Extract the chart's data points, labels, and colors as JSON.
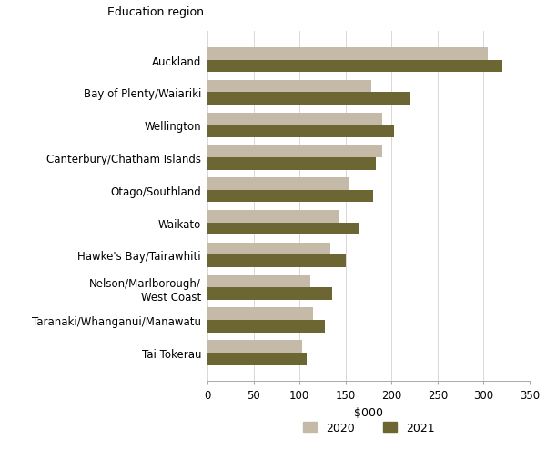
{
  "categories": [
    "Tai Tokerau",
    "Taranaki/Whanganui/Manawatu",
    "Nelson/Marlborough/\nWest Coast",
    "Hawke's Bay/Tairawhiti",
    "Waikato",
    "Otago/Southland",
    "Canterbury/Chatham Islands",
    "Wellington",
    "Bay of Plenty/Waiariki",
    "Auckland"
  ],
  "values_2020": [
    103,
    115,
    112,
    133,
    143,
    153,
    190,
    190,
    178,
    305
  ],
  "values_2021": [
    108,
    128,
    135,
    150,
    165,
    180,
    183,
    203,
    220,
    320
  ],
  "color_2020": "#c5b9a8",
  "color_2021": "#6b6632",
  "xlabel": "$000",
  "xlim": [
    0,
    350
  ],
  "xticks": [
    0,
    50,
    100,
    150,
    200,
    250,
    300,
    350
  ],
  "legend_labels": [
    "2020",
    "2021"
  ],
  "title": "Education region"
}
